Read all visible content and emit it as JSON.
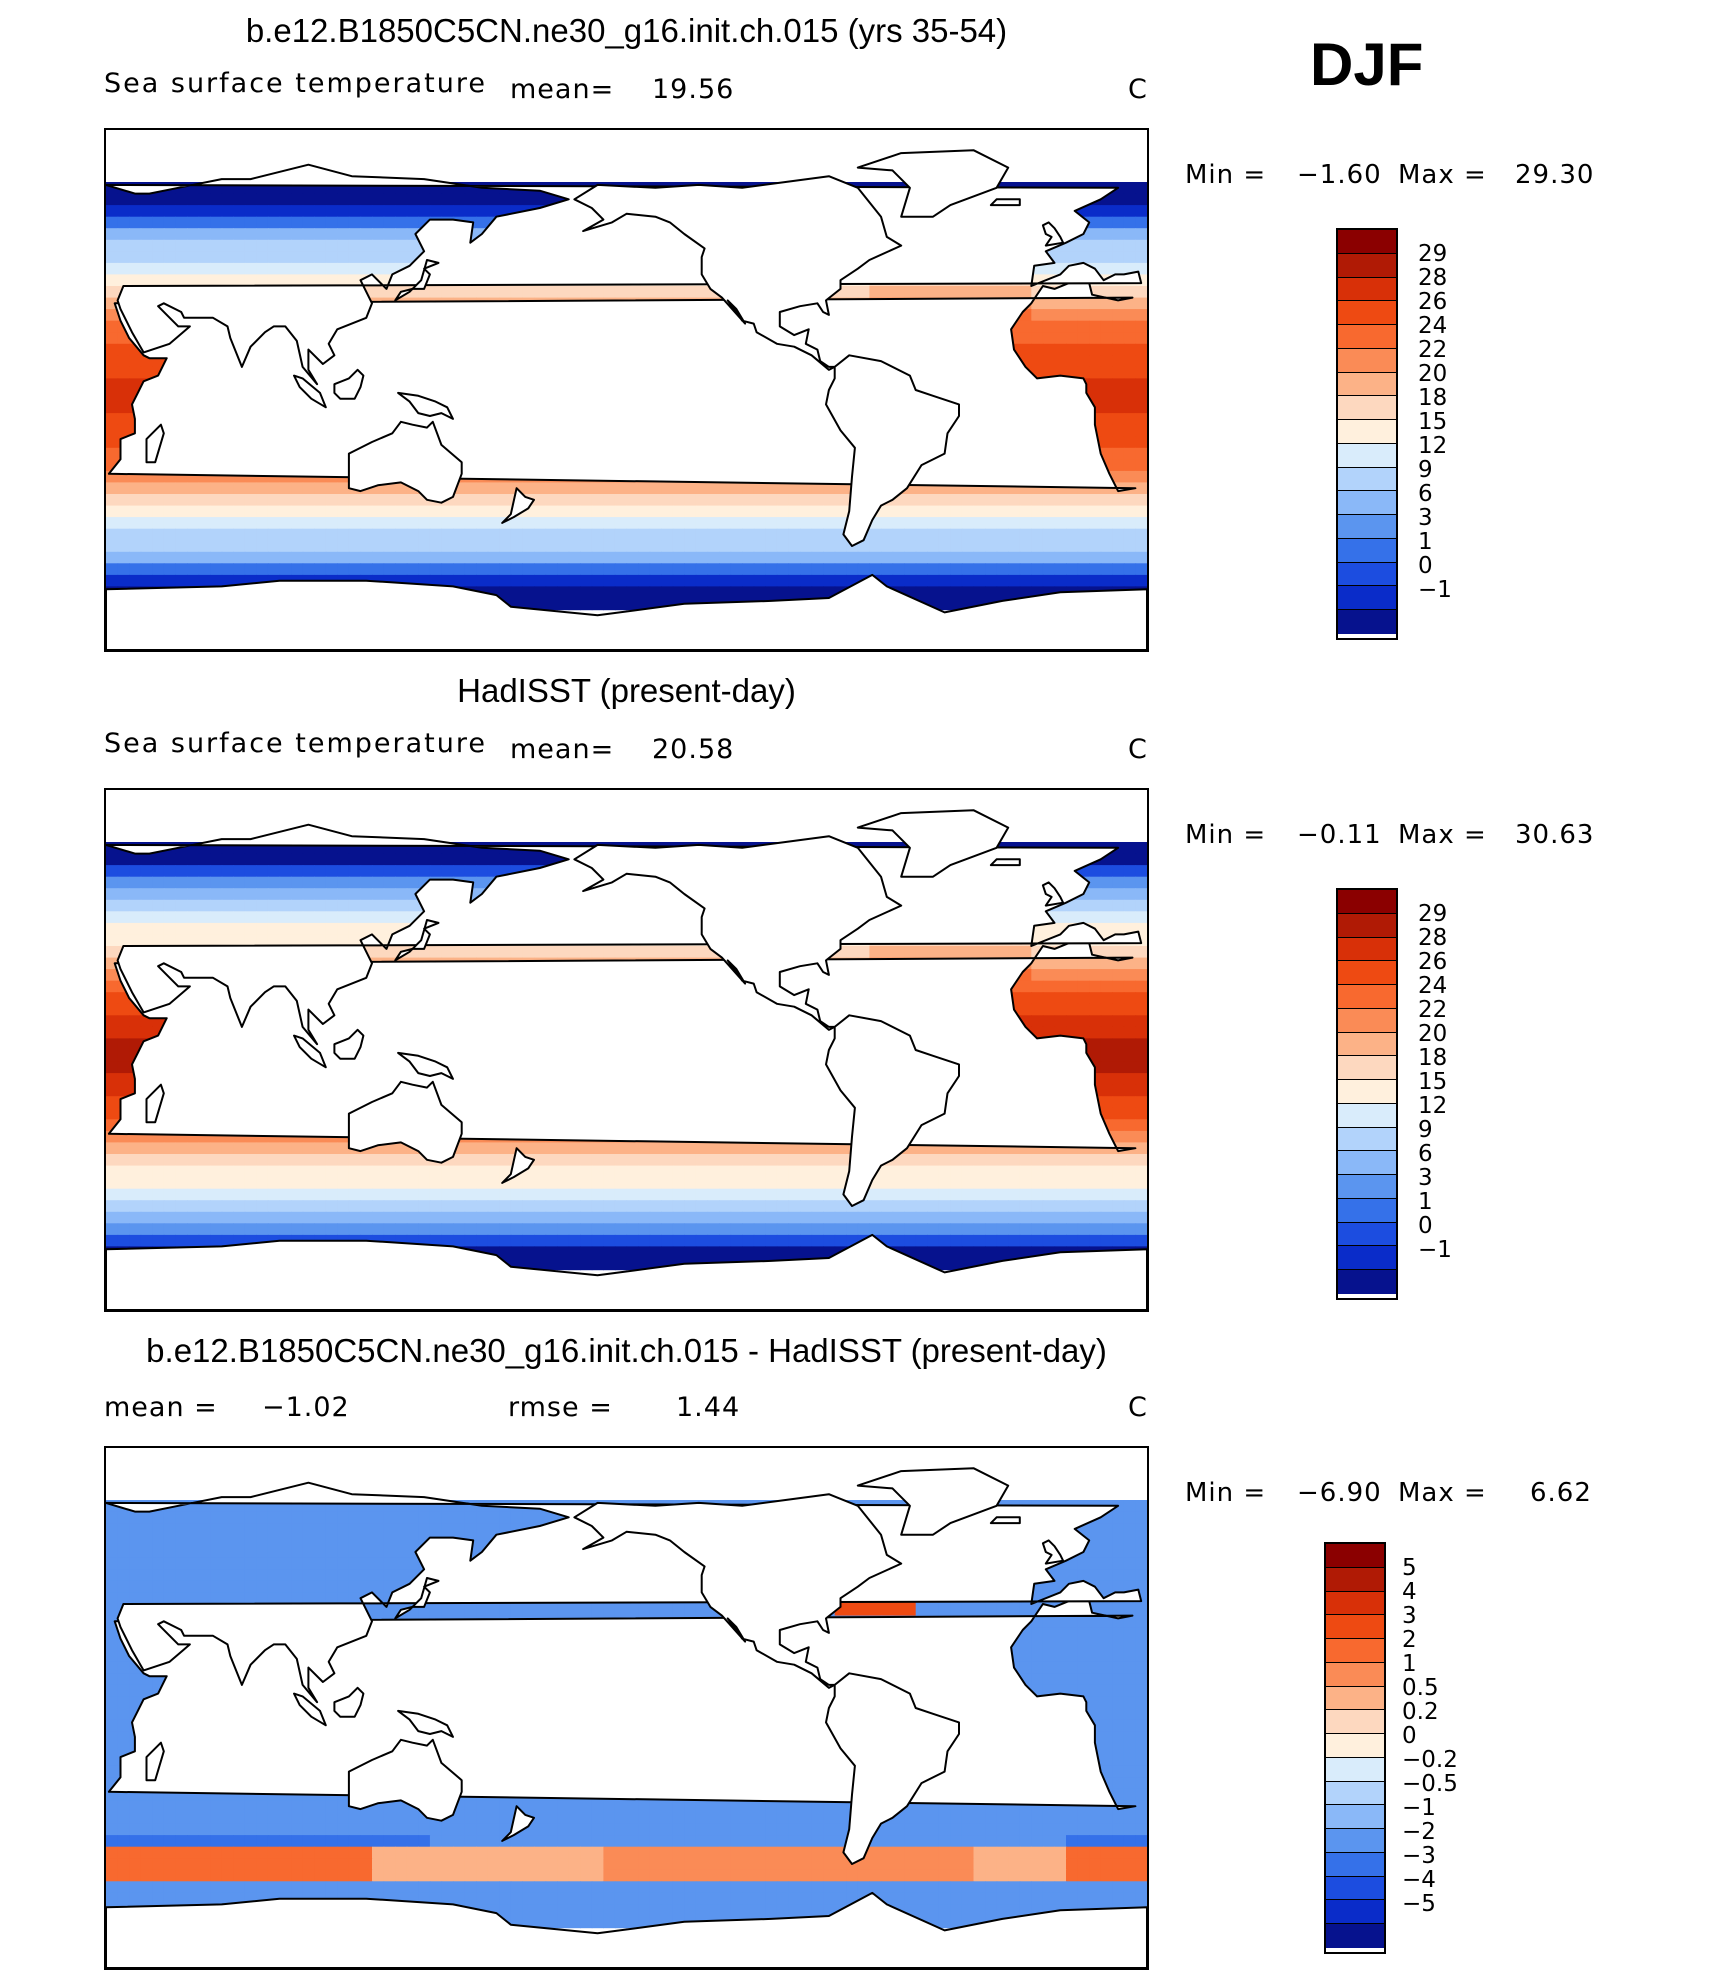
{
  "season": "DJF",
  "continent_color": "#ffffff",
  "coast_color": "#000000",
  "panels": [
    {
      "id": "panel-1",
      "title": "b.e12.B1850C5CN.ne30_g16.init.ch.015 (yrs 35-54)",
      "subtitle": "Sea surface temperature",
      "stat_label": "mean=",
      "stat_value": "19.56",
      "stat2_label": "",
      "stat2_value": "",
      "units": "C",
      "min_label": "Min =",
      "min_value": "−1.60",
      "max_label": "Max =",
      "max_value": "29.30",
      "colorbar": {
        "labels": [
          "29",
          "28",
          "26",
          "24",
          "22",
          "20",
          "18",
          "15",
          "12",
          "9",
          "6",
          "3",
          "1",
          "0",
          "−1"
        ],
        "colors": [
          "#8b0000",
          "#b01a05",
          "#d83008",
          "#ee4a12",
          "#f8692f",
          "#fa8b56",
          "#fcb287",
          "#fdd8bf",
          "#fff0dd",
          "#d9ecfb",
          "#b2d3fb",
          "#8ab8f8",
          "#5b95ef",
          "#3571e9",
          "#1c4de0",
          "#0a2cc9",
          "#06128e"
        ]
      },
      "map_field": "sst_model"
    },
    {
      "id": "panel-2",
      "title": "HadISST (present-day)",
      "subtitle": "Sea surface temperature",
      "stat_label": "mean=",
      "stat_value": "20.58",
      "stat2_label": "",
      "stat2_value": "",
      "units": "C",
      "min_label": "Min =",
      "min_value": "−0.11",
      "max_label": "Max =",
      "max_value": "30.63",
      "colorbar": {
        "labels": [
          "29",
          "28",
          "26",
          "24",
          "22",
          "20",
          "18",
          "15",
          "12",
          "9",
          "6",
          "3",
          "1",
          "0",
          "−1"
        ],
        "colors": [
          "#8b0000",
          "#b01a05",
          "#d83008",
          "#ee4a12",
          "#f8692f",
          "#fa8b56",
          "#fcb287",
          "#fdd8bf",
          "#fff0dd",
          "#d9ecfb",
          "#b2d3fb",
          "#8ab8f8",
          "#5b95ef",
          "#3571e9",
          "#1c4de0",
          "#0a2cc9",
          "#06128e"
        ]
      },
      "map_field": "sst_obs"
    },
    {
      "id": "panel-3",
      "title": "b.e12.B1850C5CN.ne30_g16.init.ch.015 - HadISST (present-day)",
      "subtitle": "",
      "stat_label": "mean =",
      "stat_value": "−1.02",
      "stat2_label": "rmse =",
      "stat2_value": "1.44",
      "units": "C",
      "min_label": "Min =",
      "min_value": "−6.90",
      "max_label": "Max =",
      "max_value": "6.62",
      "colorbar": {
        "labels": [
          "5",
          "4",
          "3",
          "2",
          "1",
          "0.5",
          "0.2",
          "0",
          "−0.2",
          "−0.5",
          "−1",
          "−2",
          "−3",
          "−4",
          "−5"
        ],
        "colors": [
          "#8b0000",
          "#b01a05",
          "#d83008",
          "#ee4a12",
          "#f8692f",
          "#fa8b56",
          "#fcb287",
          "#fdd8bf",
          "#fff0dd",
          "#d9ecfb",
          "#b2d3fb",
          "#8ab8f8",
          "#5b95ef",
          "#3571e9",
          "#1c4de0",
          "#0a2cc9",
          "#06128e"
        ]
      },
      "map_field": "sst_diff"
    }
  ]
}
